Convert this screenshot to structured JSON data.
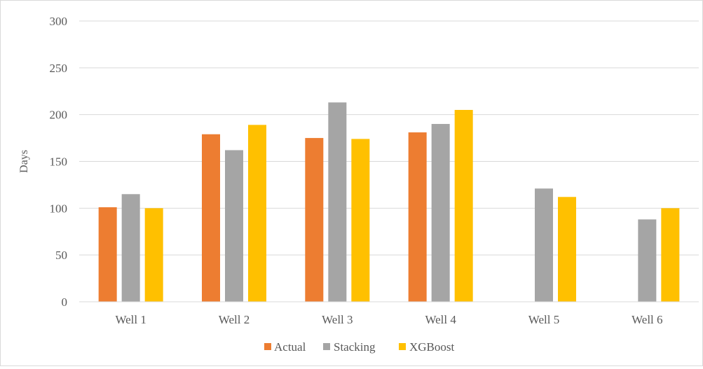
{
  "chart_data": {
    "type": "bar",
    "title": "",
    "xlabel": "",
    "ylabel": "Days",
    "ylim": [
      0,
      300
    ],
    "yticks": [
      0,
      50,
      100,
      150,
      200,
      250,
      300
    ],
    "grid": true,
    "legend_position": "bottom",
    "categories": [
      "Well 1",
      "Well 2",
      "Well 3",
      "Well 4",
      "Well 5",
      "Well 6"
    ],
    "series": [
      {
        "name": "Actual",
        "color": "#ED7D31",
        "values": [
          101,
          179,
          175,
          181,
          null,
          null
        ]
      },
      {
        "name": "Stacking",
        "color": "#A5A5A5",
        "values": [
          115,
          162,
          213,
          190,
          121,
          88
        ]
      },
      {
        "name": "XGBoost",
        "color": "#FFC000",
        "values": [
          100,
          189,
          174,
          205,
          112,
          100
        ]
      }
    ]
  }
}
